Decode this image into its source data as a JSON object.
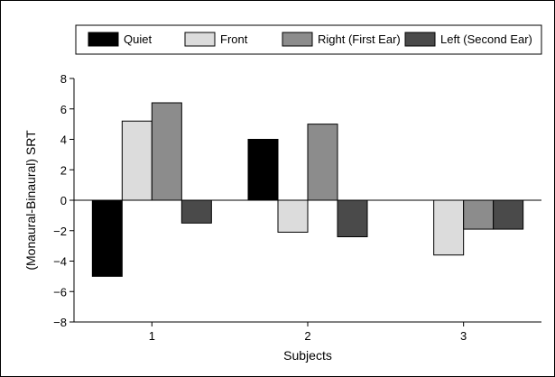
{
  "chart_data": {
    "type": "bar",
    "title": "",
    "xlabel": "Subjects",
    "ylabel": "(Monaural-Binaural) SRT",
    "categories": [
      "1",
      "2",
      "3"
    ],
    "ylim": [
      -8,
      8
    ],
    "yticks": [
      "8",
      "6",
      "4",
      "2",
      "0",
      "−2",
      "−4",
      "−6",
      "−8"
    ],
    "ytick_values": [
      8,
      6,
      4,
      2,
      0,
      -2,
      -4,
      -6,
      -8
    ],
    "legend_position": "top",
    "grid": false,
    "series": [
      {
        "name": "Quiet",
        "color": "#000000",
        "values": [
          -5.0,
          4.0,
          0.0
        ]
      },
      {
        "name": "Front",
        "color": "#dcdcdc",
        "values": [
          5.2,
          -2.1,
          -3.6
        ]
      },
      {
        "name": "Right (First Ear)",
        "color": "#8c8c8c",
        "values": [
          6.4,
          5.0,
          -1.9
        ]
      },
      {
        "name": "Left (Second Ear)",
        "color": "#4a4a4a",
        "values": [
          -1.5,
          -2.4,
          -1.9
        ]
      }
    ]
  }
}
